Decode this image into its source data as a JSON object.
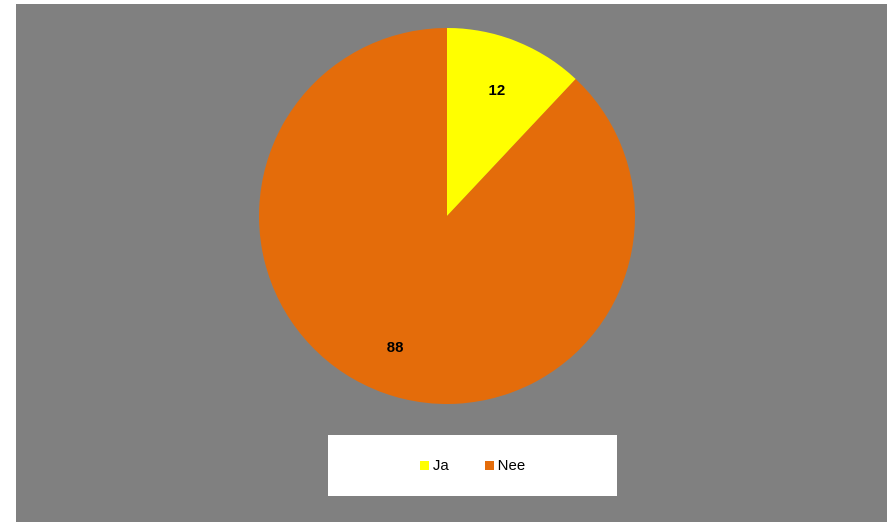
{
  "colors": {
    "background": "#808080",
    "ja": "#FFFF00",
    "nee": "#E46C0A",
    "legend_bg": "#FFFFFF"
  },
  "chart_data": {
    "type": "pie",
    "categories": [
      "Ja",
      "Nee"
    ],
    "values": [
      12,
      88
    ],
    "data_labels": [
      "12",
      "88"
    ],
    "legend": {
      "placement": "bottom",
      "entries": [
        "Ja",
        "Nee"
      ]
    }
  }
}
